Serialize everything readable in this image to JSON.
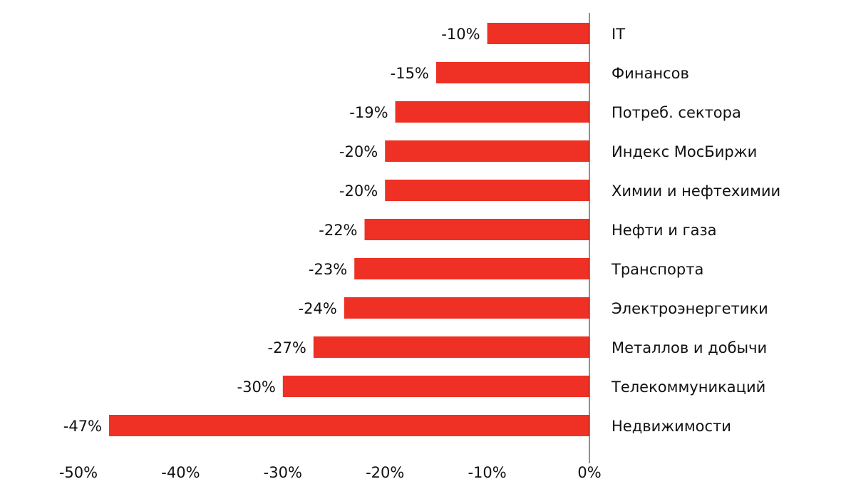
{
  "chart_data": {
    "type": "bar",
    "orientation": "horizontal",
    "categories": [
      "IT",
      "Финансов",
      "Потреб. сектора",
      "Индекс МосБиржи",
      "Химии и нефтехимии",
      "Нефти и газа",
      "Транспорта",
      "Электроэнергетики",
      "Металлов и добычи",
      "Телекоммуникаций",
      "Недвижимости"
    ],
    "values": [
      -10,
      -15,
      -19,
      -20,
      -20,
      -22,
      -23,
      -24,
      -27,
      -30,
      -47
    ],
    "value_labels": [
      "-10%",
      "-15%",
      "-19%",
      "-20%",
      "-20%",
      "-22%",
      "-23%",
      "-24%",
      "-27%",
      "-30%",
      "-47%"
    ],
    "color": "#ee3124",
    "xlim": [
      -50,
      0
    ],
    "xticks": [
      {
        "value": -50,
        "label": "-50%"
      },
      {
        "value": -40,
        "label": "-40%"
      },
      {
        "value": -30,
        "label": "-30%"
      },
      {
        "value": -20,
        "label": "-20%"
      },
      {
        "value": -10,
        "label": "-10%"
      },
      {
        "value": 0,
        "label": "0%"
      }
    ],
    "grid": false
  }
}
